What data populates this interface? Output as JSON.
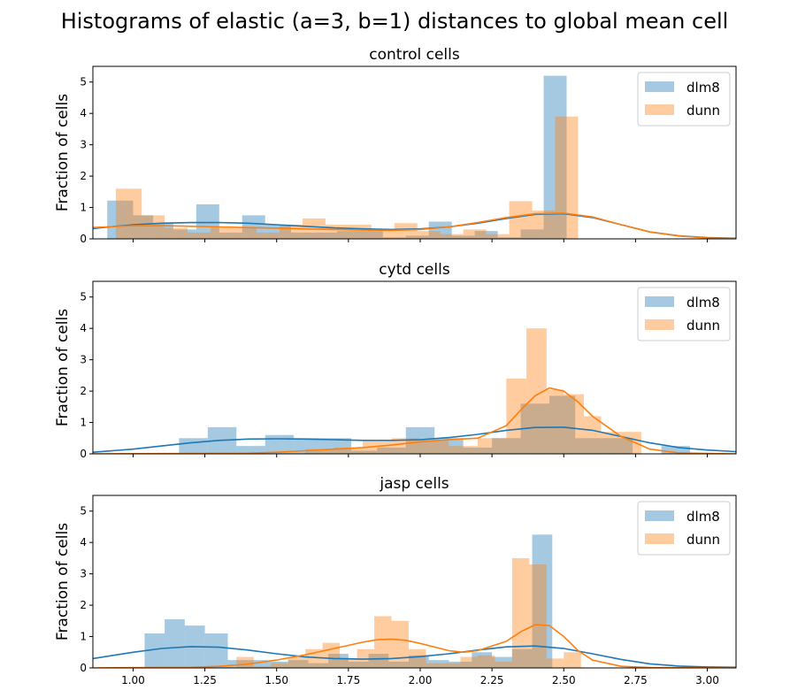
{
  "title": "Histograms of elastic (a=3, b=1) distances to global mean cell",
  "series_colors": {
    "dlm8": "#1f77b4",
    "dunn": "#ff7f0e"
  },
  "x_ticks": [
    1.0,
    1.25,
    1.5,
    1.75,
    2.0,
    2.25,
    2.5,
    2.75,
    3.0
  ],
  "x_tick_labels": [
    "1.00",
    "1.25",
    "1.50",
    "1.75",
    "2.00",
    "2.25",
    "2.50",
    "2.75",
    "3.00"
  ],
  "y_ticks": [
    0,
    1,
    2,
    3,
    4,
    5
  ],
  "chart_data": [
    {
      "type": "bar",
      "title": "control cells",
      "xlabel": "",
      "ylabel": "Fraction of cells",
      "xlim": [
        0.86,
        3.1
      ],
      "ylim": [
        0,
        5.5
      ],
      "legend": "top-right",
      "series": [
        {
          "name": "dlm8",
          "bins": [
            [
              0.91,
              1.0,
              1.22
            ],
            [
              1.0,
              1.07,
              0.75
            ],
            [
              1.07,
              1.14,
              0.5
            ],
            [
              1.14,
              1.22,
              0.3
            ],
            [
              1.22,
              1.3,
              1.1
            ],
            [
              1.3,
              1.38,
              0.2
            ],
            [
              1.38,
              1.46,
              0.75
            ],
            [
              1.46,
              1.55,
              0.45
            ],
            [
              1.55,
              1.63,
              0.2
            ],
            [
              1.63,
              1.71,
              0.2
            ],
            [
              1.71,
              1.79,
              0.25
            ],
            [
              1.79,
              1.87,
              0.25
            ],
            [
              1.87,
              1.95,
              0.05
            ],
            [
              1.95,
              2.03,
              0.1
            ],
            [
              2.03,
              2.11,
              0.55
            ],
            [
              2.11,
              2.19,
              0.1
            ],
            [
              2.19,
              2.27,
              0.25
            ],
            [
              2.27,
              2.35,
              0.05
            ],
            [
              2.35,
              2.43,
              0.3
            ],
            [
              2.43,
              2.51,
              5.2
            ]
          ],
          "kde_x": [
            0.86,
            1.0,
            1.1,
            1.2,
            1.3,
            1.4,
            1.5,
            1.6,
            1.7,
            1.8,
            1.9,
            2.0,
            2.1,
            2.2,
            2.3,
            2.4,
            2.5,
            2.6,
            2.7,
            2.8,
            2.9,
            3.0,
            3.1
          ],
          "kde_y": [
            0.33,
            0.45,
            0.5,
            0.52,
            0.52,
            0.5,
            0.45,
            0.4,
            0.35,
            0.32,
            0.3,
            0.32,
            0.38,
            0.5,
            0.65,
            0.78,
            0.8,
            0.68,
            0.45,
            0.22,
            0.1,
            0.04,
            0.02
          ]
        },
        {
          "name": "dunn",
          "bins": [
            [
              0.94,
              1.03,
              1.6
            ],
            [
              1.03,
              1.11,
              0.75
            ],
            [
              1.11,
              1.19,
              0.35
            ],
            [
              1.19,
              1.27,
              0.2
            ],
            [
              1.27,
              1.35,
              0.35
            ],
            [
              1.35,
              1.43,
              0.35
            ],
            [
              1.43,
              1.51,
              0.2
            ],
            [
              1.51,
              1.59,
              0.45
            ],
            [
              1.59,
              1.67,
              0.65
            ],
            [
              1.67,
              1.75,
              0.45
            ],
            [
              1.75,
              1.83,
              0.45
            ],
            [
              1.83,
              1.91,
              0.25
            ],
            [
              1.91,
              1.99,
              0.5
            ],
            [
              1.99,
              2.07,
              0.25
            ],
            [
              2.07,
              2.15,
              0.15
            ],
            [
              2.15,
              2.23,
              0.3
            ],
            [
              2.23,
              2.31,
              0.15
            ],
            [
              2.31,
              2.39,
              1.2
            ],
            [
              2.39,
              2.47,
              0.9
            ],
            [
              2.47,
              2.55,
              3.9
            ]
          ],
          "kde_x": [
            0.86,
            1.0,
            1.1,
            1.2,
            1.3,
            1.4,
            1.5,
            1.6,
            1.7,
            1.8,
            1.9,
            2.0,
            2.1,
            2.2,
            2.3,
            2.4,
            2.5,
            2.6,
            2.7,
            2.8,
            2.9,
            3.0,
            3.1
          ],
          "kde_y": [
            0.36,
            0.42,
            0.42,
            0.4,
            0.38,
            0.36,
            0.34,
            0.32,
            0.3,
            0.28,
            0.27,
            0.3,
            0.38,
            0.52,
            0.68,
            0.8,
            0.82,
            0.7,
            0.45,
            0.22,
            0.09,
            0.03,
            0.01
          ]
        }
      ]
    },
    {
      "type": "bar",
      "title": "cytd cells",
      "xlabel": "",
      "ylabel": "Fraction of cells",
      "xlim": [
        0.86,
        3.1
      ],
      "ylim": [
        0,
        5.5
      ],
      "legend": "top-right",
      "series": [
        {
          "name": "dlm8",
          "bins": [
            [
              1.16,
              1.26,
              0.5
            ],
            [
              1.26,
              1.36,
              0.85
            ],
            [
              1.36,
              1.46,
              0.25
            ],
            [
              1.46,
              1.56,
              0.6
            ],
            [
              1.56,
              1.66,
              0.5
            ],
            [
              1.66,
              1.76,
              0.5
            ],
            [
              1.76,
              1.85,
              0.1
            ],
            [
              1.85,
              1.95,
              0.2
            ],
            [
              1.95,
              2.05,
              0.85
            ],
            [
              2.05,
              2.15,
              0.5
            ],
            [
              2.15,
              2.25,
              0.2
            ],
            [
              2.25,
              2.35,
              0.5
            ],
            [
              2.35,
              2.45,
              1.6
            ],
            [
              2.45,
              2.54,
              1.85
            ],
            [
              2.54,
              2.64,
              0.5
            ],
            [
              2.64,
              2.74,
              0.5
            ],
            [
              2.74,
              2.84,
              0.0
            ],
            [
              2.84,
              2.94,
              0.25
            ]
          ],
          "kde_x": [
            0.86,
            1.0,
            1.1,
            1.2,
            1.3,
            1.4,
            1.5,
            1.6,
            1.7,
            1.8,
            1.9,
            2.0,
            2.1,
            2.2,
            2.3,
            2.4,
            2.5,
            2.6,
            2.7,
            2.8,
            2.9,
            3.0,
            3.1
          ],
          "kde_y": [
            0.05,
            0.15,
            0.25,
            0.35,
            0.43,
            0.47,
            0.48,
            0.47,
            0.45,
            0.43,
            0.43,
            0.45,
            0.52,
            0.62,
            0.75,
            0.84,
            0.85,
            0.75,
            0.55,
            0.35,
            0.2,
            0.12,
            0.07
          ]
        },
        {
          "name": "dunn",
          "bins": [
            [
              1.6,
              1.7,
              0.15
            ],
            [
              1.7,
              1.8,
              0.2
            ],
            [
              1.8,
              1.9,
              0.4
            ],
            [
              1.9,
              2.0,
              0.5
            ],
            [
              2.0,
              2.1,
              0.45
            ],
            [
              2.1,
              2.2,
              0.25
            ],
            [
              2.2,
              2.3,
              0.5
            ],
            [
              2.3,
              2.37,
              2.4
            ],
            [
              2.37,
              2.44,
              4.0
            ],
            [
              2.44,
              2.5,
              2.05
            ],
            [
              2.5,
              2.57,
              1.9
            ],
            [
              2.57,
              2.63,
              1.2
            ],
            [
              2.63,
              2.7,
              0.7
            ],
            [
              2.7,
              2.77,
              0.7
            ],
            [
              2.77,
              2.83,
              0.0
            ]
          ],
          "kde_x": [
            0.86,
            1.4,
            1.5,
            1.6,
            1.7,
            1.8,
            1.9,
            2.0,
            2.1,
            2.2,
            2.3,
            2.35,
            2.4,
            2.45,
            2.5,
            2.55,
            2.6,
            2.7,
            2.8,
            2.9,
            3.0,
            3.1
          ],
          "kde_y": [
            0.0,
            0.02,
            0.05,
            0.1,
            0.15,
            0.2,
            0.28,
            0.38,
            0.45,
            0.5,
            0.9,
            1.4,
            1.85,
            2.1,
            2.0,
            1.65,
            1.2,
            0.55,
            0.15,
            0.03,
            0.01,
            0.0
          ]
        }
      ]
    },
    {
      "type": "bar",
      "title": "jasp cells",
      "xlabel": "",
      "ylabel": "Fraction of cells",
      "xlim": [
        0.86,
        3.1
      ],
      "ylim": [
        0,
        5.5
      ],
      "legend": "top-right",
      "series": [
        {
          "name": "dlm8",
          "bins": [
            [
              1.04,
              1.11,
              1.1
            ],
            [
              1.11,
              1.18,
              1.55
            ],
            [
              1.18,
              1.25,
              1.35
            ],
            [
              1.25,
              1.33,
              1.1
            ],
            [
              1.33,
              1.4,
              0.25
            ],
            [
              1.4,
              1.47,
              0.25
            ],
            [
              1.47,
              1.54,
              0.2
            ],
            [
              1.54,
              1.61,
              0.25
            ],
            [
              1.61,
              1.68,
              0.15
            ],
            [
              1.68,
              1.75,
              0.45
            ],
            [
              1.75,
              1.82,
              0.2
            ],
            [
              1.82,
              1.89,
              0.45
            ],
            [
              1.89,
              1.96,
              0.2
            ],
            [
              1.96,
              2.03,
              0.4
            ],
            [
              2.03,
              2.1,
              0.25
            ],
            [
              2.1,
              2.18,
              0.2
            ],
            [
              2.18,
              2.25,
              0.5
            ],
            [
              2.25,
              2.32,
              0.35
            ],
            [
              2.32,
              2.39,
              0.6
            ],
            [
              2.39,
              2.46,
              4.25
            ]
          ],
          "kde_x": [
            0.86,
            1.0,
            1.1,
            1.2,
            1.3,
            1.4,
            1.5,
            1.6,
            1.7,
            1.8,
            1.9,
            2.0,
            2.1,
            2.2,
            2.3,
            2.4,
            2.5,
            2.6,
            2.7,
            2.8,
            2.9,
            3.0,
            3.1
          ],
          "kde_y": [
            0.3,
            0.5,
            0.62,
            0.68,
            0.66,
            0.57,
            0.45,
            0.35,
            0.3,
            0.28,
            0.3,
            0.36,
            0.45,
            0.57,
            0.67,
            0.7,
            0.62,
            0.45,
            0.27,
            0.13,
            0.06,
            0.03,
            0.02
          ]
        },
        {
          "name": "dunn",
          "bins": [
            [
              1.36,
              1.42,
              0.35
            ],
            [
              1.42,
              1.48,
              0.05
            ],
            [
              1.48,
              1.54,
              0.15
            ],
            [
              1.54,
              1.6,
              0.35
            ],
            [
              1.6,
              1.66,
              0.6
            ],
            [
              1.66,
              1.72,
              0.8
            ],
            [
              1.72,
              1.78,
              0.3
            ],
            [
              1.78,
              1.84,
              0.6
            ],
            [
              1.84,
              1.9,
              1.65
            ],
            [
              1.9,
              1.96,
              1.5
            ],
            [
              1.96,
              2.02,
              0.6
            ],
            [
              2.02,
              2.08,
              0.15
            ],
            [
              2.08,
              2.14,
              0.15
            ],
            [
              2.14,
              2.2,
              0.35
            ],
            [
              2.2,
              2.26,
              0.4
            ],
            [
              2.26,
              2.32,
              0.2
            ],
            [
              2.32,
              2.38,
              3.5
            ],
            [
              2.38,
              2.44,
              3.3
            ],
            [
              2.44,
              2.5,
              0.3
            ],
            [
              2.5,
              2.56,
              0.5
            ]
          ],
          "kde_x": [
            0.86,
            1.2,
            1.3,
            1.4,
            1.5,
            1.6,
            1.7,
            1.8,
            1.85,
            1.9,
            1.95,
            2.0,
            2.1,
            2.15,
            2.2,
            2.3,
            2.35,
            2.4,
            2.45,
            2.5,
            2.55,
            2.6,
            2.7,
            2.8,
            3.1
          ],
          "kde_y": [
            0.0,
            0.02,
            0.05,
            0.12,
            0.25,
            0.42,
            0.62,
            0.82,
            0.9,
            0.92,
            0.88,
            0.78,
            0.55,
            0.5,
            0.55,
            0.85,
            1.15,
            1.38,
            1.35,
            1.0,
            0.55,
            0.25,
            0.05,
            0.01,
            0.0
          ]
        }
      ]
    }
  ]
}
